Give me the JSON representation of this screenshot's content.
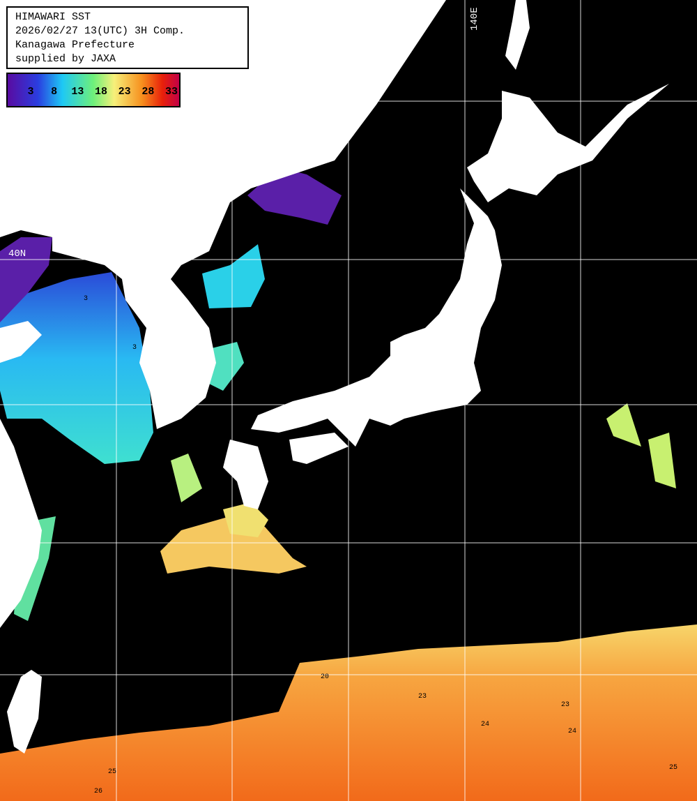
{
  "legend_box": {
    "lines": [
      "HIMAWARI SST",
      "2026/02/27 13(UTC) 3H Comp.",
      "Kanagawa Prefecture",
      "supplied by JAXA"
    ]
  },
  "colorbar": {
    "ticks": [
      3,
      8,
      13,
      18,
      23,
      28,
      33
    ]
  },
  "grid_labels": {
    "longitude": "140E",
    "latitude": "40N"
  },
  "contour_labels": [
    "3",
    "3",
    "20",
    "23",
    "23",
    "24",
    "24",
    "25",
    "25",
    "26"
  ]
}
